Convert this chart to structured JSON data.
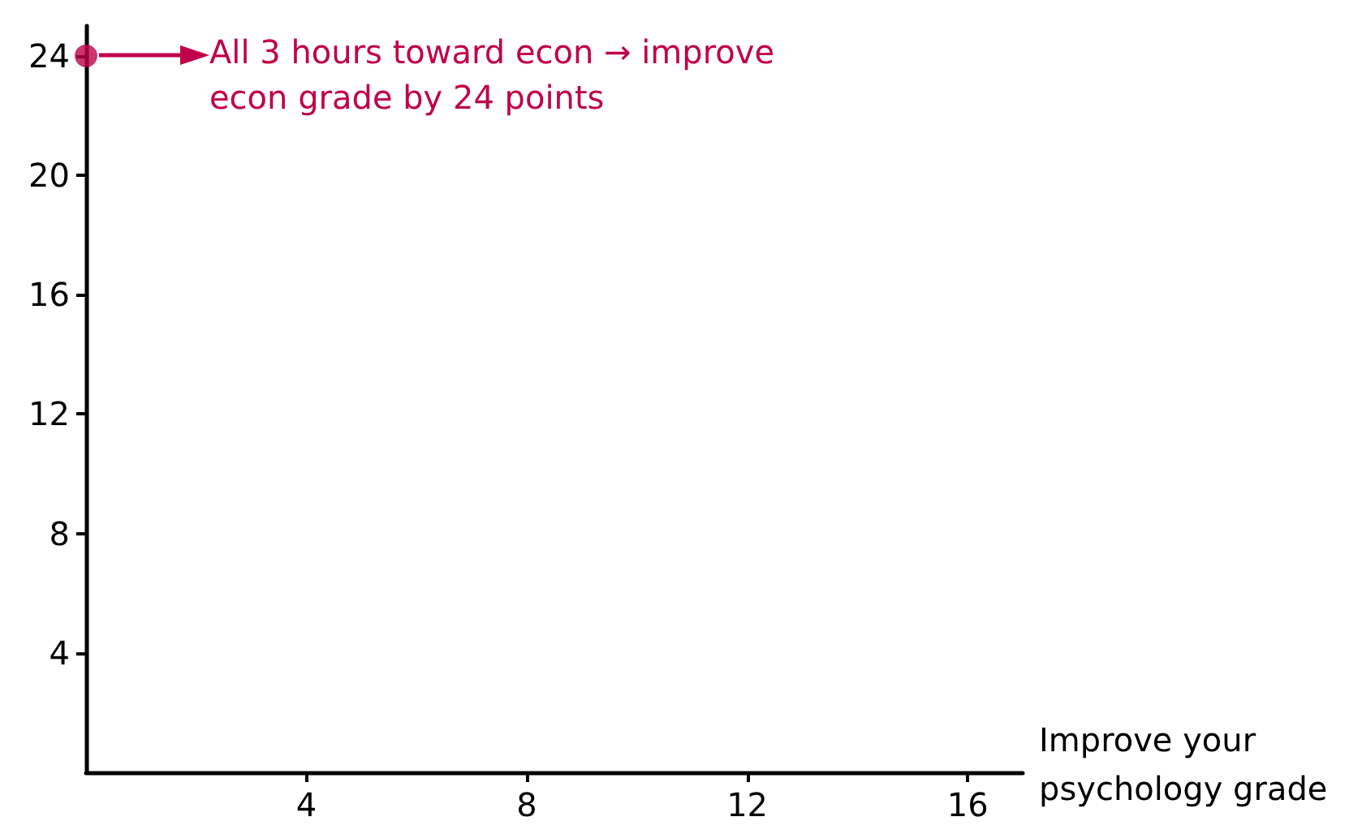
{
  "chart_data": {
    "type": "scatter",
    "xlabel": "Improve your\npsychology grade",
    "x": [
      0
    ],
    "values": [
      24
    ],
    "color": "#c0004a",
    "marker": "circle",
    "xlim": [
      0,
      17
    ],
    "ylim": [
      0,
      25
    ],
    "xticks": [
      4,
      8,
      12,
      16
    ],
    "yticks": [
      4,
      8,
      12,
      16,
      20,
      24
    ],
    "annotations": [
      "All 3 hours toward econ → improve\necon grade by 24 points"
    ]
  }
}
